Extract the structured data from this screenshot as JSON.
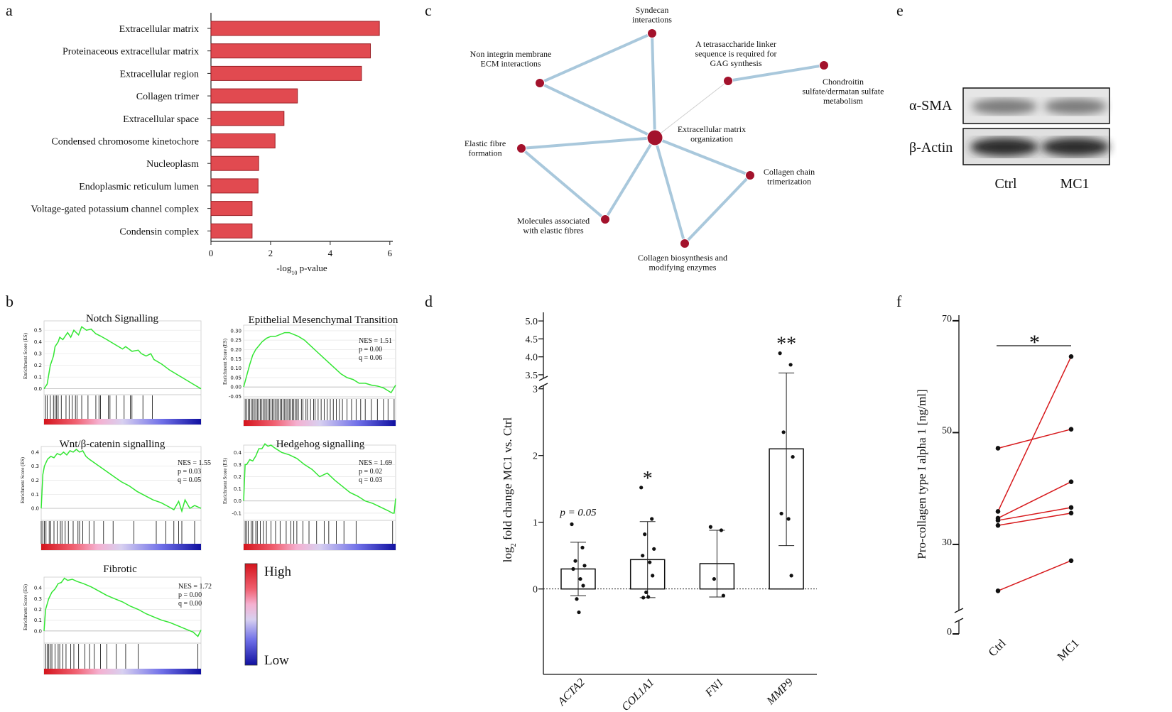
{
  "panel_labels": [
    "a",
    "b",
    "c",
    "d",
    "e",
    "f"
  ],
  "chart_data": [
    {
      "type": "barh",
      "categories": [
        "Extracellular matrix",
        "Proteinaceous extracellular matrix",
        "Extracellular region",
        "Collagen trimer",
        "Extracellular space",
        "Condensed chromosome kinetochore",
        "Nucleoplasm",
        "Endoplasmic reticulum lumen",
        "Voltage-gated potassium channel complex",
        "Condensin complex"
      ],
      "values": [
        5.65,
        5.35,
        5.05,
        2.9,
        2.45,
        2.15,
        1.6,
        1.58,
        1.38,
        1.38
      ],
      "color": "#e14a50",
      "xlim": [
        0,
        6.1
      ],
      "xticks": [
        0,
        2,
        4,
        6
      ],
      "x_label": [
        "-log",
        "10",
        " p-value"
      ]
    },
    {
      "type": "gsea",
      "title": "Notch Signalling",
      "y_label": "Enrichment Score (ES)",
      "color": "#33e633",
      "xlim": [
        0,
        100
      ],
      "ylim": [
        -0.02,
        0.58
      ],
      "yticks": [
        {
          "value": 0,
          "label": "0.0"
        },
        0.1,
        0.2,
        0.3,
        0.4,
        0.5
      ],
      "x": [
        0,
        2,
        3,
        4,
        6,
        7,
        9,
        10,
        12,
        15,
        17,
        19,
        22,
        24,
        27,
        30,
        33,
        36,
        40,
        45,
        50,
        52,
        56,
        60,
        62,
        65,
        68,
        70,
        75,
        80,
        85,
        90,
        95,
        100
      ],
      "values": [
        0,
        0.04,
        0.12,
        0.2,
        0.28,
        0.36,
        0.4,
        0.44,
        0.42,
        0.48,
        0.44,
        0.5,
        0.46,
        0.53,
        0.5,
        0.51,
        0.47,
        0.45,
        0.42,
        0.38,
        0.34,
        0.36,
        0.32,
        0.33,
        0.3,
        0.28,
        0.3,
        0.25,
        0.21,
        0.16,
        0.12,
        0.08,
        0.04,
        0
      ],
      "hits": [
        1,
        2,
        4,
        6,
        7,
        8,
        9,
        11,
        14,
        16,
        18,
        20,
        21,
        24,
        28,
        33,
        35,
        36,
        41,
        42,
        46,
        51,
        55,
        56,
        63,
        69
      ],
      "stats": []
    },
    {
      "type": "gsea",
      "title": "Epithelial Mesenchymal Transition",
      "y_label": "Enrichment Score (ES)",
      "color": "#33e633",
      "xlim": [
        0,
        100
      ],
      "ylim": [
        -0.06,
        0.33
      ],
      "yticks": [
        {
          "value": -0.05,
          "label": "-0.05"
        },
        {
          "value": 0,
          "label": "0.00"
        },
        {
          "value": 0.05,
          "label": "0.05"
        },
        {
          "value": 0.1,
          "label": "0.10"
        },
        {
          "value": 0.15,
          "label": "0.15"
        },
        {
          "value": 0.2,
          "label": "0.20"
        },
        {
          "value": 0.25,
          "label": "0.25"
        },
        {
          "value": 0.3,
          "label": "0.30"
        }
      ],
      "x": [
        0,
        2,
        4,
        6,
        8,
        10,
        12,
        15,
        18,
        21,
        24,
        27,
        30,
        33,
        36,
        40,
        44,
        48,
        52,
        56,
        60,
        64,
        68,
        72,
        76,
        80,
        84,
        88,
        92,
        95,
        97,
        100
      ],
      "values": [
        0,
        0.06,
        0.12,
        0.17,
        0.2,
        0.22,
        0.24,
        0.26,
        0.27,
        0.27,
        0.28,
        0.29,
        0.29,
        0.28,
        0.27,
        0.25,
        0.22,
        0.19,
        0.16,
        0.13,
        0.1,
        0.07,
        0.05,
        0.04,
        0.02,
        0.02,
        0.01,
        0.005,
        -0.005,
        -0.02,
        -0.03,
        0.01
      ],
      "hits": [
        1,
        2,
        3,
        4,
        5,
        6,
        7,
        8,
        9,
        10,
        11,
        12,
        13,
        14,
        15,
        16,
        17,
        18,
        19,
        20,
        21,
        22,
        23,
        24,
        25,
        26,
        27,
        28,
        29,
        30,
        31,
        32,
        33,
        34,
        35,
        36,
        38,
        39,
        41,
        42,
        44,
        46,
        47,
        49,
        51,
        53,
        55,
        57,
        59,
        61,
        63,
        65,
        68,
        71,
        74,
        77,
        80,
        84,
        88,
        92,
        95,
        99
      ],
      "stats": [
        "NES = 1.51",
        "p = 0.00",
        "q = 0.06"
      ]
    },
    {
      "type": "gsea",
      "title": "Wnt/β-catenin signalling",
      "y_label": "Enrichment Score (ES)",
      "color": "#33e633",
      "xlim": [
        0,
        100
      ],
      "ylim": [
        -0.04,
        0.44
      ],
      "yticks": [
        {
          "value": 0,
          "label": "0.0"
        },
        0.1,
        0.2,
        0.3,
        0.4
      ],
      "x": [
        0,
        1,
        2,
        4,
        6,
        8,
        10,
        12,
        14,
        16,
        18,
        20,
        22,
        24,
        26,
        28,
        30,
        35,
        40,
        45,
        50,
        55,
        60,
        65,
        70,
        75,
        80,
        83,
        86,
        88,
        90,
        93,
        96,
        100
      ],
      "values": [
        0,
        0.24,
        0.3,
        0.35,
        0.37,
        0.36,
        0.39,
        0.38,
        0.4,
        0.38,
        0.41,
        0.4,
        0.42,
        0.4,
        0.41,
        0.37,
        0.35,
        0.31,
        0.27,
        0.23,
        0.19,
        0.16,
        0.12,
        0.09,
        0.06,
        0.04,
        0.01,
        -0.01,
        0.05,
        -0.02,
        0.06,
        0,
        0.02,
        0
      ],
      "hits": [
        0,
        1,
        2,
        3,
        5,
        6,
        8,
        10,
        12,
        13,
        15,
        17,
        20,
        23,
        24,
        26,
        30,
        33,
        39,
        45,
        58,
        72,
        78,
        83,
        86,
        88,
        96
      ],
      "stats": [
        "NES = 1.55",
        "p = 0.03",
        "q = 0.05"
      ]
    },
    {
      "type": "gsea",
      "title": "Hedgehog signalling",
      "y_label": "Enrichment Score (ES)",
      "color": "#33e633",
      "xlim": [
        0,
        100
      ],
      "ylim": [
        -0.13,
        0.46
      ],
      "yticks": [
        -0.1,
        {
          "value": 0,
          "label": "0.0"
        },
        0.1,
        0.2,
        0.3,
        0.4
      ],
      "x": [
        0,
        1,
        2,
        4,
        6,
        8,
        10,
        12,
        14,
        16,
        18,
        20,
        25,
        30,
        35,
        40,
        45,
        50,
        55,
        60,
        65,
        70,
        75,
        80,
        85,
        90,
        95,
        98,
        99,
        100
      ],
      "values": [
        0,
        0.3,
        0.3,
        0.34,
        0.33,
        0.37,
        0.43,
        0.43,
        0.47,
        0.45,
        0.46,
        0.44,
        0.4,
        0.38,
        0.35,
        0.3,
        0.26,
        0.2,
        0.23,
        0.17,
        0.12,
        0.07,
        0.04,
        0,
        -0.02,
        -0.05,
        -0.08,
        -0.1,
        -0.1,
        0.02
      ],
      "hits": [
        1,
        2,
        3,
        5,
        6,
        8,
        9,
        11,
        13,
        15,
        18,
        21,
        24,
        28,
        31,
        33,
        35,
        39,
        43,
        48,
        53,
        56,
        61,
        66,
        74,
        98
      ],
      "stats": [
        "NES = 1.69",
        "p = 0.02",
        "q = 0.03"
      ]
    },
    {
      "type": "gsea",
      "title": "Fibrotic",
      "y_label": "Enrichment Score (ES)",
      "color": "#33e633",
      "xlim": [
        0,
        100
      ],
      "ylim": [
        -0.06,
        0.5
      ],
      "yticks": [
        {
          "value": 0,
          "label": "0.0"
        },
        0.1,
        0.2,
        0.3,
        0.4
      ],
      "x": [
        0,
        1,
        2,
        3,
        5,
        7,
        9,
        11,
        13,
        15,
        18,
        21,
        25,
        30,
        35,
        40,
        45,
        50,
        55,
        60,
        65,
        70,
        75,
        80,
        85,
        90,
        95,
        98,
        100
      ],
      "values": [
        0,
        0.2,
        0.25,
        0.3,
        0.36,
        0.39,
        0.44,
        0.45,
        0.49,
        0.47,
        0.48,
        0.46,
        0.44,
        0.41,
        0.37,
        0.33,
        0.3,
        0.27,
        0.23,
        0.2,
        0.16,
        0.13,
        0.1,
        0.08,
        0.05,
        0.02,
        -0.01,
        -0.05,
        0.01
      ],
      "hits": [
        1,
        2,
        3,
        4,
        5,
        7,
        9,
        10,
        12,
        14,
        17,
        19,
        22,
        26,
        29,
        32,
        36,
        40,
        46,
        52,
        60,
        98
      ],
      "stats": [
        "NES = 1.72",
        "p = 0.00",
        "q = 0.00"
      ]
    },
    {
      "type": "bar_broken",
      "categories": [
        "ACTA2",
        "COL1A1",
        "FN1",
        "MMP9"
      ],
      "values": [
        0.3,
        0.44,
        0.38,
        2.1
      ],
      "errors": [
        0.4,
        0.57,
        0.5,
        1.45
      ],
      "points": [
        [
          0.97,
          0.62,
          0.42,
          0.35,
          0.3,
          0.15,
          0.05,
          -0.15,
          -0.35
        ],
        [
          1.52,
          1.05,
          0.82,
          0.6,
          0.5,
          0.4,
          0.2,
          -0.05,
          -0.12,
          -0.13
        ],
        [
          0.93,
          0.88,
          0.15,
          -0.1
        ],
        [
          4.1,
          3.78,
          2.35,
          1.98,
          1.13,
          1.05,
          0.2
        ]
      ],
      "annotations": [
        "p = 0.05",
        "*",
        null,
        "**"
      ],
      "hline": 0,
      "ylim": [
        -1.28,
        3.05
      ],
      "yticks": [
        0,
        1,
        2,
        3
      ],
      "ylim_upper": [
        3.4,
        5.24
      ],
      "yticks_upper": [
        3.5,
        {
          "value": 4,
          "label": "4.0"
        },
        4.5,
        {
          "value": 5,
          "label": "5.0"
        }
      ],
      "y_label": [
        "log",
        "2",
        " fold change MC1 vs. Ctrl"
      ]
    },
    {
      "type": "paired",
      "categories": [
        "Ctrl",
        "MC1"
      ],
      "color": "#d7191c",
      "series": [
        {
          "values": [
            47.2,
            50.6
          ]
        },
        {
          "values": [
            21.7,
            27.1
          ]
        },
        {
          "values": [
            35.9,
            63.6
          ]
        },
        {
          "values": [
            34.7,
            41.2
          ]
        },
        {
          "values": [
            34.3,
            36.6
          ]
        },
        {
          "values": [
            33.4,
            35.6
          ]
        }
      ],
      "annotation": "*",
      "ylim": [
        17.5,
        71
      ],
      "yticks": [
        30,
        50,
        70
      ],
      "ylim_low": [
        0,
        2
      ],
      "yticks_low": [
        0
      ],
      "y_label": "Pro-collagen type I alpha 1  [ng/ml]"
    }
  ],
  "heatmap_legend": {
    "high": "High",
    "low": "Low"
  },
  "network": {
    "nodes": [
      {
        "label": [
          "Extracellular matrix",
          "organization"
        ]
      },
      {
        "label": [
          "Syndecan",
          "interactions"
        ]
      },
      {
        "label": [
          "Non integrin membrane",
          "ECM interactions"
        ]
      },
      {
        "label": [
          "A tetrasaccharide linker",
          "sequence is required for",
          "GAG synthesis"
        ]
      },
      {
        "label": [
          "Chondroitin",
          "sulfate/dermatan sulfate",
          "metabolism"
        ]
      },
      {
        "label": [
          "Elastic fibre",
          "formation"
        ]
      },
      {
        "label": [
          "Collagen chain",
          "trimerization"
        ]
      },
      {
        "label": [
          "Molecules associated",
          "with elastic fibres"
        ]
      },
      {
        "label": [
          "Collagen biosynthesis and",
          "modifying enzymes"
        ]
      }
    ]
  },
  "blot": {
    "rows": [
      "α-SMA",
      "β-Actin"
    ],
    "lanes": [
      "Ctrl",
      "MC1"
    ]
  }
}
